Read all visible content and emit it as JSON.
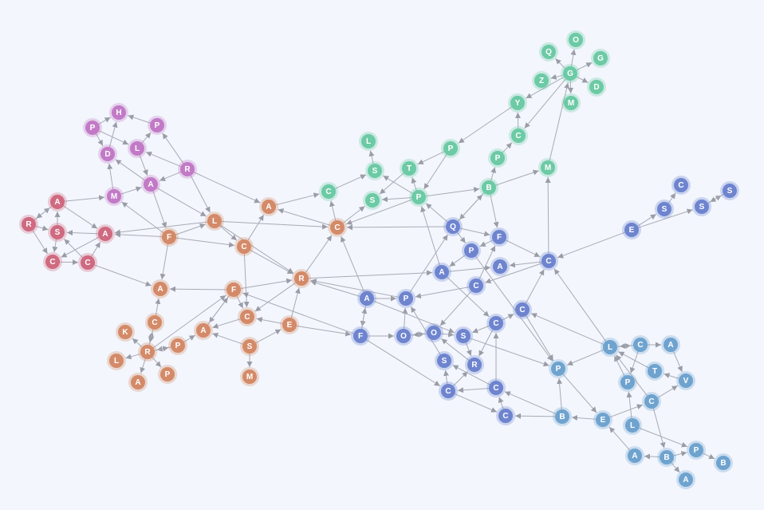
{
  "groups": {
    "purple": "#c27ac6",
    "red": "#cf6a80",
    "orange": "#d48a68",
    "green": "#6ccaa5",
    "blue": "#6e84cf",
    "lightblue": "#6fa3cf"
  },
  "edge_color": "#a9abb4",
  "background": "#f3f6fd",
  "nodes": [
    {
      "id": "p1",
      "label": "P",
      "g": "purple"
    },
    {
      "id": "p2",
      "label": "H",
      "g": "purple"
    },
    {
      "id": "p3",
      "label": "P",
      "g": "purple"
    },
    {
      "id": "p4",
      "label": "D",
      "g": "purple"
    },
    {
      "id": "p5",
      "label": "L",
      "g": "purple"
    },
    {
      "id": "p6",
      "label": "R",
      "g": "purple"
    },
    {
      "id": "p7",
      "label": "A",
      "g": "purple"
    },
    {
      "id": "p8",
      "label": "M",
      "g": "purple"
    },
    {
      "id": "r1",
      "label": "A",
      "g": "red"
    },
    {
      "id": "r2",
      "label": "R",
      "g": "red"
    },
    {
      "id": "r3",
      "label": "S",
      "g": "red"
    },
    {
      "id": "r4",
      "label": "A",
      "g": "red"
    },
    {
      "id": "r5",
      "label": "C",
      "g": "red"
    },
    {
      "id": "r6",
      "label": "C",
      "g": "red"
    },
    {
      "id": "o1",
      "label": "A",
      "g": "orange"
    },
    {
      "id": "o2",
      "label": "L",
      "g": "orange"
    },
    {
      "id": "o3",
      "label": "F",
      "g": "orange"
    },
    {
      "id": "o4",
      "label": "C",
      "g": "orange"
    },
    {
      "id": "o5",
      "label": "C",
      "g": "orange"
    },
    {
      "id": "o6",
      "label": "R",
      "g": "orange"
    },
    {
      "id": "o7",
      "label": "F",
      "g": "orange"
    },
    {
      "id": "o8",
      "label": "A",
      "g": "orange"
    },
    {
      "id": "o9",
      "label": "C",
      "g": "orange"
    },
    {
      "id": "o10",
      "label": "C",
      "g": "orange"
    },
    {
      "id": "o11",
      "label": "E",
      "g": "orange"
    },
    {
      "id": "o12",
      "label": "A",
      "g": "orange"
    },
    {
      "id": "o13",
      "label": "K",
      "g": "orange"
    },
    {
      "id": "o14",
      "label": "R",
      "g": "orange"
    },
    {
      "id": "o15",
      "label": "P",
      "g": "orange"
    },
    {
      "id": "o16",
      "label": "L",
      "g": "orange"
    },
    {
      "id": "o17",
      "label": "P",
      "g": "orange"
    },
    {
      "id": "o18",
      "label": "A",
      "g": "orange"
    },
    {
      "id": "o19",
      "label": "S",
      "g": "orange"
    },
    {
      "id": "o20",
      "label": "M",
      "g": "orange"
    },
    {
      "id": "g1",
      "label": "L",
      "g": "green"
    },
    {
      "id": "g2",
      "label": "S",
      "g": "green"
    },
    {
      "id": "g3",
      "label": "C",
      "g": "green"
    },
    {
      "id": "g4",
      "label": "S",
      "g": "green"
    },
    {
      "id": "g5",
      "label": "T",
      "g": "green"
    },
    {
      "id": "g6",
      "label": "P",
      "g": "green"
    },
    {
      "id": "g7",
      "label": "P",
      "g": "green"
    },
    {
      "id": "g8",
      "label": "B",
      "g": "green"
    },
    {
      "id": "g9",
      "label": "P",
      "g": "green"
    },
    {
      "id": "g10",
      "label": "C",
      "g": "green"
    },
    {
      "id": "g11",
      "label": "Y",
      "g": "green"
    },
    {
      "id": "g12",
      "label": "Z",
      "g": "green"
    },
    {
      "id": "g13",
      "label": "G",
      "g": "green"
    },
    {
      "id": "g14",
      "label": "Q",
      "g": "green"
    },
    {
      "id": "g15",
      "label": "O",
      "g": "green"
    },
    {
      "id": "g16",
      "label": "G",
      "g": "green"
    },
    {
      "id": "g17",
      "label": "D",
      "g": "green"
    },
    {
      "id": "g18",
      "label": "M",
      "g": "green"
    },
    {
      "id": "g19",
      "label": "M",
      "g": "green"
    },
    {
      "id": "b1",
      "label": "Q",
      "g": "blue"
    },
    {
      "id": "b2",
      "label": "F",
      "g": "blue"
    },
    {
      "id": "b3",
      "label": "P",
      "g": "blue"
    },
    {
      "id": "b4",
      "label": "A",
      "g": "blue"
    },
    {
      "id": "b5",
      "label": "C",
      "g": "blue"
    },
    {
      "id": "b6",
      "label": "A",
      "g": "blue"
    },
    {
      "id": "b7",
      "label": "C",
      "g": "blue"
    },
    {
      "id": "b8",
      "label": "C",
      "g": "blue"
    },
    {
      "id": "b9",
      "label": "A",
      "g": "blue"
    },
    {
      "id": "b10",
      "label": "P",
      "g": "blue"
    },
    {
      "id": "b11",
      "label": "C",
      "g": "blue"
    },
    {
      "id": "b12",
      "label": "F",
      "g": "blue"
    },
    {
      "id": "b13",
      "label": "O",
      "g": "blue"
    },
    {
      "id": "b14",
      "label": "O",
      "g": "blue"
    },
    {
      "id": "b15",
      "label": "S",
      "g": "blue"
    },
    {
      "id": "b16",
      "label": "S",
      "g": "blue"
    },
    {
      "id": "b17",
      "label": "R",
      "g": "blue"
    },
    {
      "id": "b18",
      "label": "C",
      "g": "blue"
    },
    {
      "id": "b19",
      "label": "C",
      "g": "blue"
    },
    {
      "id": "b20",
      "label": "C",
      "g": "blue"
    },
    {
      "id": "b21",
      "label": "E",
      "g": "blue"
    },
    {
      "id": "b22",
      "label": "S",
      "g": "blue"
    },
    {
      "id": "b23",
      "label": "C",
      "g": "blue"
    },
    {
      "id": "b24",
      "label": "S",
      "g": "blue"
    },
    {
      "id": "b25",
      "label": "S",
      "g": "blue"
    },
    {
      "id": "l1",
      "label": "L",
      "g": "lightblue"
    },
    {
      "id": "l2",
      "label": "C",
      "g": "lightblue"
    },
    {
      "id": "l3",
      "label": "A",
      "g": "lightblue"
    },
    {
      "id": "l4",
      "label": "T",
      "g": "lightblue"
    },
    {
      "id": "l5",
      "label": "V",
      "g": "lightblue"
    },
    {
      "id": "l6",
      "label": "P",
      "g": "lightblue"
    },
    {
      "id": "l7",
      "label": "C",
      "g": "lightblue"
    },
    {
      "id": "l8",
      "label": "P",
      "g": "lightblue"
    },
    {
      "id": "l9",
      "label": "B",
      "g": "lightblue"
    },
    {
      "id": "l10",
      "label": "E",
      "g": "lightblue"
    },
    {
      "id": "l11",
      "label": "L",
      "g": "lightblue"
    },
    {
      "id": "l12",
      "label": "A",
      "g": "lightblue"
    },
    {
      "id": "l13",
      "label": "B",
      "g": "lightblue"
    },
    {
      "id": "l14",
      "label": "P",
      "g": "lightblue"
    },
    {
      "id": "l15",
      "label": "B",
      "g": "lightblue"
    },
    {
      "id": "l16",
      "label": "A",
      "g": "lightblue"
    }
  ],
  "edges": [
    [
      "p1",
      "p2"
    ],
    [
      "p1",
      "p4"
    ],
    [
      "p1",
      "p5"
    ],
    [
      "p4",
      "p2"
    ],
    [
      "p3",
      "p2"
    ],
    [
      "p5",
      "p3"
    ],
    [
      "p6",
      "p3"
    ],
    [
      "p6",
      "p5"
    ],
    [
      "p5",
      "p7"
    ],
    [
      "p6",
      "p7"
    ],
    [
      "p7",
      "p4"
    ],
    [
      "p8",
      "p4"
    ],
    [
      "p8",
      "p7"
    ],
    [
      "p6",
      "o2"
    ],
    [
      "p6",
      "o1"
    ],
    [
      "p7",
      "o2"
    ],
    [
      "p7",
      "o3"
    ],
    [
      "o3",
      "p8"
    ],
    [
      "r1",
      "p8"
    ],
    [
      "r2",
      "r1"
    ],
    [
      "r1",
      "r2"
    ],
    [
      "r2",
      "r3"
    ],
    [
      "r2",
      "r5"
    ],
    [
      "r3",
      "r1"
    ],
    [
      "r4",
      "r3"
    ],
    [
      "r1",
      "r4"
    ],
    [
      "r3",
      "r5"
    ],
    [
      "r4",
      "r5"
    ],
    [
      "r5",
      "r6"
    ],
    [
      "r6",
      "r4"
    ],
    [
      "r6",
      "r3"
    ],
    [
      "r6",
      "o8"
    ],
    [
      "o3",
      "r4"
    ],
    [
      "o2",
      "r4"
    ],
    [
      "o3",
      "o2"
    ],
    [
      "o3",
      "o4"
    ],
    [
      "o2",
      "o4"
    ],
    [
      "o4",
      "o1"
    ],
    [
      "o1",
      "g3"
    ],
    [
      "o5",
      "o1"
    ],
    [
      "o2",
      "o5"
    ],
    [
      "o2",
      "o6"
    ],
    [
      "o4",
      "o6"
    ],
    [
      "b1",
      "o5"
    ],
    [
      "o5",
      "g3"
    ],
    [
      "o5",
      "g4"
    ],
    [
      "g7",
      "o5"
    ],
    [
      "o4",
      "o10"
    ],
    [
      "o7",
      "o10"
    ],
    [
      "o7",
      "o8"
    ],
    [
      "o3",
      "o8"
    ],
    [
      "o7",
      "o6"
    ],
    [
      "o6",
      "o10"
    ],
    [
      "o11",
      "o6"
    ],
    [
      "o11",
      "o10"
    ],
    [
      "o11",
      "b12"
    ],
    [
      "b12",
      "o7"
    ],
    [
      "o7",
      "o12"
    ],
    [
      "o12",
      "o7"
    ],
    [
      "o14",
      "o7"
    ],
    [
      "o19",
      "o12"
    ],
    [
      "o19",
      "o11"
    ],
    [
      "o19",
      "o20"
    ],
    [
      "o10",
      "o12"
    ],
    [
      "o14",
      "o9"
    ],
    [
      "o9",
      "o14"
    ],
    [
      "o14",
      "o13"
    ],
    [
      "o14",
      "o16"
    ],
    [
      "o14",
      "o18"
    ],
    [
      "o14",
      "o17"
    ],
    [
      "o15",
      "o14"
    ],
    [
      "o14",
      "o15"
    ],
    [
      "o15",
      "o12"
    ],
    [
      "o9",
      "o8"
    ],
    [
      "o6",
      "o5"
    ],
    [
      "b9",
      "o6"
    ],
    [
      "b10",
      "o6"
    ],
    [
      "o6",
      "b6"
    ],
    [
      "b9",
      "o5"
    ],
    [
      "g2",
      "g1"
    ],
    [
      "g3",
      "g2"
    ],
    [
      "g7",
      "g2"
    ],
    [
      "g7",
      "g4"
    ],
    [
      "g5",
      "g4"
    ],
    [
      "g7",
      "g5"
    ],
    [
      "g6",
      "g5"
    ],
    [
      "g6",
      "g7"
    ],
    [
      "g7",
      "g8"
    ],
    [
      "g8",
      "g9"
    ],
    [
      "g9",
      "g10"
    ],
    [
      "g10",
      "g11"
    ],
    [
      "g11",
      "g6"
    ],
    [
      "g13",
      "g10"
    ],
    [
      "g13",
      "g11"
    ],
    [
      "g13",
      "g12"
    ],
    [
      "g13",
      "g14"
    ],
    [
      "g13",
      "g15"
    ],
    [
      "g13",
      "g16"
    ],
    [
      "g13",
      "g17"
    ],
    [
      "g13",
      "g18"
    ],
    [
      "g19",
      "g13"
    ],
    [
      "g8",
      "g19"
    ],
    [
      "b1",
      "g7"
    ],
    [
      "b6",
      "g7"
    ],
    [
      "g8",
      "b1"
    ],
    [
      "b1",
      "g8"
    ],
    [
      "g8",
      "b2"
    ],
    [
      "b5",
      "g19"
    ],
    [
      "b1",
      "b2"
    ],
    [
      "b1",
      "b3"
    ],
    [
      "b2",
      "b3"
    ],
    [
      "b3",
      "b6"
    ],
    [
      "b2",
      "b5"
    ],
    [
      "b5",
      "b4"
    ],
    [
      "b6",
      "b4"
    ],
    [
      "b7",
      "b10"
    ],
    [
      "b5",
      "b7"
    ],
    [
      "b6",
      "b11"
    ],
    [
      "b7",
      "b14"
    ],
    [
      "b11",
      "b8"
    ],
    [
      "b18",
      "b11"
    ],
    [
      "b11",
      "b15"
    ],
    [
      "b11",
      "b17"
    ],
    [
      "b15",
      "b17"
    ],
    [
      "b14",
      "b15"
    ],
    [
      "b13",
      "b14"
    ],
    [
      "b14",
      "b13"
    ],
    [
      "b12",
      "b13"
    ],
    [
      "b9",
      "b12"
    ],
    [
      "b12",
      "b9"
    ],
    [
      "b9",
      "b10"
    ],
    [
      "b13",
      "b10"
    ],
    [
      "b16",
      "b10"
    ],
    [
      "b17",
      "b14"
    ],
    [
      "b19",
      "b16"
    ],
    [
      "b19",
      "b17"
    ],
    [
      "b18",
      "b19"
    ],
    [
      "b18",
      "b16"
    ],
    [
      "b12",
      "b19"
    ],
    [
      "b19",
      "b20"
    ],
    [
      "b20",
      "b18"
    ],
    [
      "l9",
      "b20"
    ],
    [
      "l9",
      "b18"
    ],
    [
      "b15",
      "l8"
    ],
    [
      "b8",
      "l8"
    ],
    [
      "b8",
      "b5"
    ],
    [
      "l1",
      "b8"
    ],
    [
      "l1",
      "b5"
    ],
    [
      "b21",
      "b5"
    ],
    [
      "b21",
      "b22"
    ],
    [
      "b22",
      "b23"
    ],
    [
      "b21",
      "b24"
    ],
    [
      "b24",
      "b25"
    ],
    [
      "b25",
      "b24"
    ],
    [
      "b10",
      "b1"
    ],
    [
      "b3",
      "l8"
    ],
    [
      "b7",
      "b2"
    ],
    [
      "b9",
      "b15"
    ],
    [
      "l9",
      "l8"
    ],
    [
      "l8",
      "l10"
    ],
    [
      "l10",
      "l9"
    ],
    [
      "l10",
      "l7"
    ],
    [
      "l11",
      "l6"
    ],
    [
      "l6",
      "l1"
    ],
    [
      "l7",
      "l1"
    ],
    [
      "l1",
      "l8"
    ],
    [
      "l1",
      "l2"
    ],
    [
      "l2",
      "l1"
    ],
    [
      "l2",
      "l3"
    ],
    [
      "l2",
      "l6"
    ],
    [
      "l3",
      "l5"
    ],
    [
      "l5",
      "l4"
    ],
    [
      "l4",
      "l1"
    ],
    [
      "l7",
      "l5"
    ],
    [
      "l7",
      "l13"
    ],
    [
      "l11",
      "l14"
    ],
    [
      "l12",
      "l10"
    ],
    [
      "l13",
      "l12"
    ],
    [
      "l13",
      "l14"
    ],
    [
      "l14",
      "l15"
    ],
    [
      "l13",
      "l16"
    ]
  ]
}
